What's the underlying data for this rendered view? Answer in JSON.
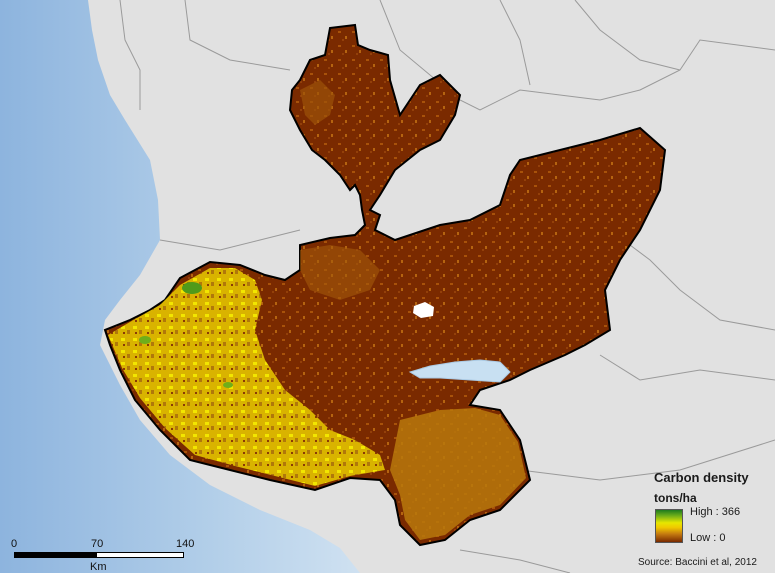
{
  "map": {
    "legend": {
      "title": "Carbon density",
      "unit": "tons/ha",
      "high_label": "High : 366",
      "low_label": "Low : 0",
      "ramp_colors": [
        "#1e7a1e",
        "#6fae1a",
        "#e6e600",
        "#f0c800",
        "#c47a10",
        "#7a2a00"
      ]
    },
    "scale_bar": {
      "labels": [
        "0",
        "70",
        "140"
      ],
      "units": "Km"
    },
    "source": "Source: Baccini et al, 2012",
    "colors": {
      "land": "#e1e1e1",
      "ocean": "#b9d3ea",
      "ocean_deep": "#9fc0e0",
      "carbon_low": "#7a2a00",
      "carbon_mid": "#c47a10",
      "carbon_high": "#e6e600",
      "lake": "#c8e0f2",
      "boundary": "#000000"
    }
  }
}
